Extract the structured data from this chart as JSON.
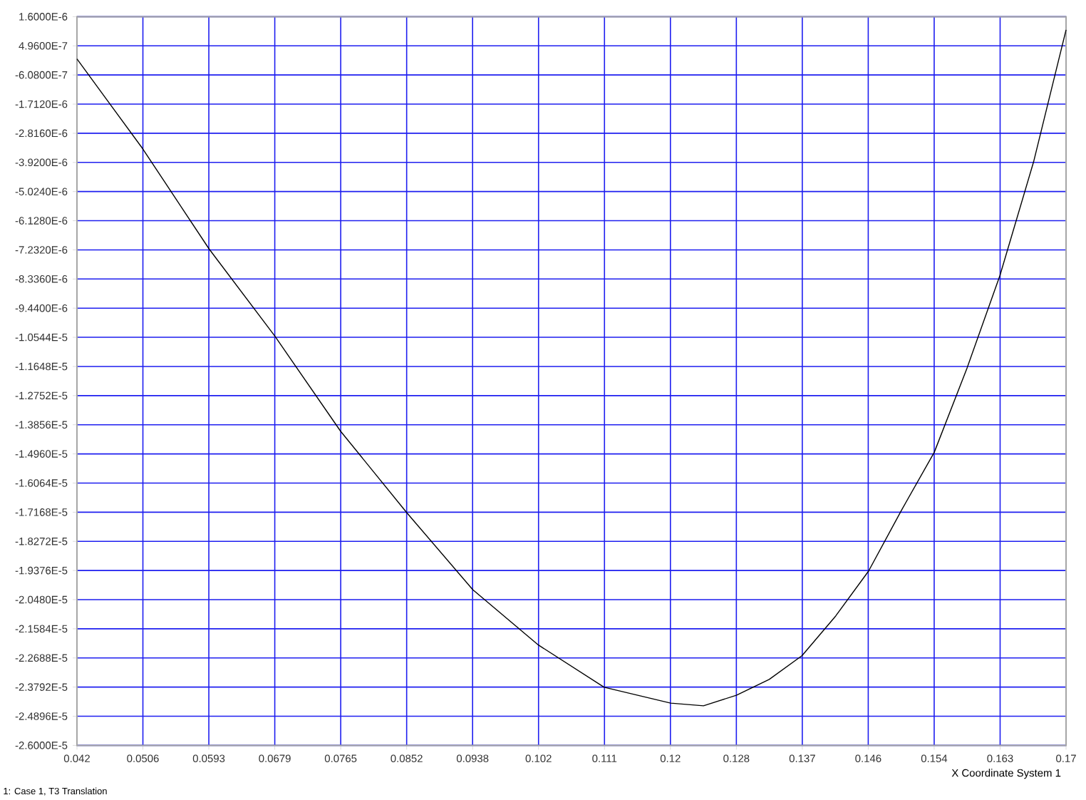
{
  "chart_data": {
    "type": "line",
    "xlabel": "X Coordinate System 1",
    "annotations": [
      "1: Case 1, T3 Translation"
    ],
    "xlim": [
      0.042,
      0.17145
    ],
    "ylim": [
      -2.6e-05,
      1.6e-06
    ],
    "xticks": [
      {
        "value": 0.042,
        "label": "0.042"
      },
      {
        "value": 0.05063,
        "label": "0.0506"
      },
      {
        "value": 0.05926,
        "label": "0.0593"
      },
      {
        "value": 0.06789,
        "label": "0.0679"
      },
      {
        "value": 0.07652,
        "label": "0.0765"
      },
      {
        "value": 0.08515,
        "label": "0.0852"
      },
      {
        "value": 0.09378,
        "label": "0.0938"
      },
      {
        "value": 0.10241,
        "label": "0.102"
      },
      {
        "value": 0.11104,
        "label": "0.111"
      },
      {
        "value": 0.11967,
        "label": "0.12"
      },
      {
        "value": 0.1283,
        "label": "0.128"
      },
      {
        "value": 0.13693,
        "label": "0.137"
      },
      {
        "value": 0.14556,
        "label": "0.146"
      },
      {
        "value": 0.15419,
        "label": "0.154"
      },
      {
        "value": 0.16282,
        "label": "0.163"
      },
      {
        "value": 0.17145,
        "label": "0.17"
      }
    ],
    "yticks": [
      {
        "value": 1.6e-06,
        "label": "1.6000E-6"
      },
      {
        "value": 4.96e-07,
        "label": "4.9600E-7"
      },
      {
        "value": -6.08e-07,
        "label": "-6.0800E-7"
      },
      {
        "value": -1.712e-06,
        "label": "-1.7120E-6"
      },
      {
        "value": -2.816e-06,
        "label": "-2.8160E-6"
      },
      {
        "value": -3.92e-06,
        "label": "-3.9200E-6"
      },
      {
        "value": -5.024e-06,
        "label": "-5.0240E-6"
      },
      {
        "value": -6.128e-06,
        "label": "-6.1280E-6"
      },
      {
        "value": -7.232e-06,
        "label": "-7.2320E-6"
      },
      {
        "value": -8.336e-06,
        "label": "-8.3360E-6"
      },
      {
        "value": -9.44e-06,
        "label": "-9.4400E-6"
      },
      {
        "value": -1.0544e-05,
        "label": "-1.0544E-5"
      },
      {
        "value": -1.1648e-05,
        "label": "-1.1648E-5"
      },
      {
        "value": -1.2752e-05,
        "label": "-1.2752E-5"
      },
      {
        "value": -1.3856e-05,
        "label": "-1.3856E-5"
      },
      {
        "value": -1.496e-05,
        "label": "-1.4960E-5"
      },
      {
        "value": -1.6064e-05,
        "label": "-1.6064E-5"
      },
      {
        "value": -1.7168e-05,
        "label": "-1.7168E-5"
      },
      {
        "value": -1.8272e-05,
        "label": "-1.8272E-5"
      },
      {
        "value": -1.9376e-05,
        "label": "-1.9376E-5"
      },
      {
        "value": -2.048e-05,
        "label": "-2.0480E-5"
      },
      {
        "value": -2.1584e-05,
        "label": "-2.1584E-5"
      },
      {
        "value": -2.2688e-05,
        "label": "-2.2688E-5"
      },
      {
        "value": -2.3792e-05,
        "label": "-2.3792E-5"
      },
      {
        "value": -2.4896e-05,
        "label": "-2.4896E-5"
      },
      {
        "value": -2.6e-05,
        "label": "-2.6000E-5"
      }
    ],
    "grid": true,
    "marker": "none",
    "line_style": "solid",
    "series": [
      {
        "color": "#000000",
        "x": [
          0.042,
          0.0463,
          0.0506,
          0.0593,
          0.0679,
          0.0765,
          0.0852,
          0.0938,
          0.1024,
          0.111,
          0.1197,
          0.124,
          0.1283,
          0.1326,
          0.1369,
          0.1413,
          0.1456,
          0.1499,
          0.1542,
          0.1585,
          0.1628,
          0.1672,
          0.17145
        ],
        "values": [
          0,
          -1.7e-06,
          -3.4e-06,
          -7.2e-06,
          -1.05e-05,
          -1.41e-05,
          -1.72e-05,
          -2.01e-05,
          -2.22e-05,
          -2.38e-05,
          -2.44e-05,
          -2.45e-05,
          -2.41e-05,
          -2.35e-05,
          -2.26e-05,
          -2.11e-05,
          -1.94e-05,
          -1.71e-05,
          -1.49e-05,
          -1.17e-05,
          -8.2e-06,
          -3.9e-06,
          1.1e-06
        ]
      }
    ]
  }
}
